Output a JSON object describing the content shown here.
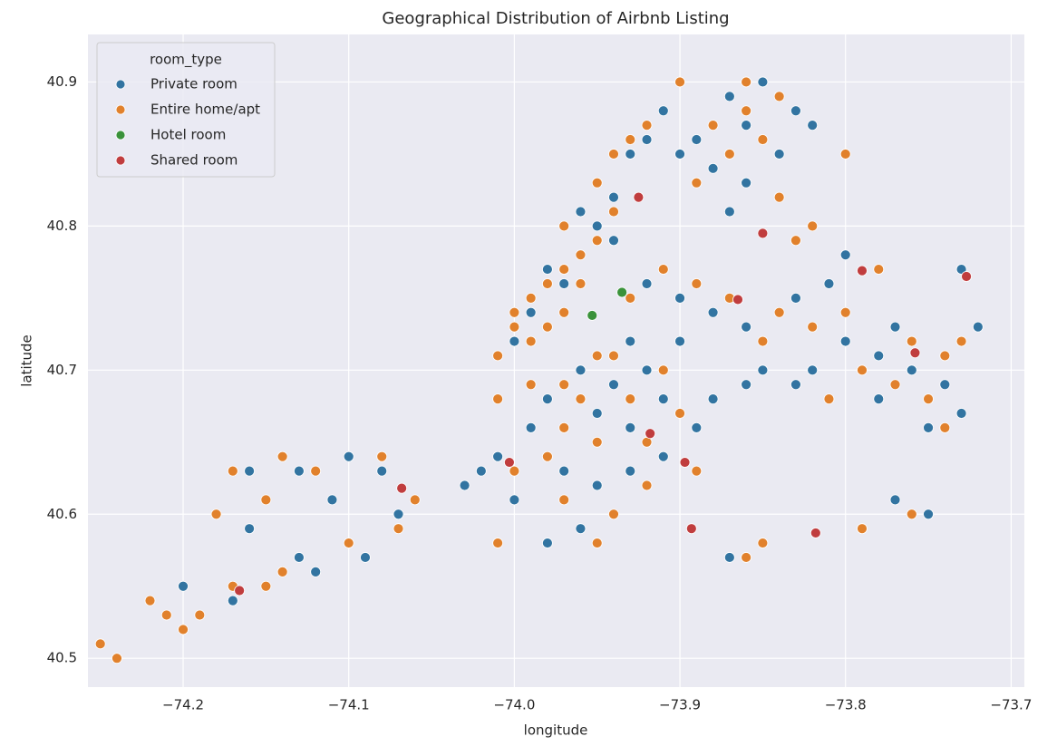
{
  "chart_data": {
    "type": "scatter",
    "title": "Geographical Distribution of Airbnb Listing",
    "x_label": "longitude",
    "y_label": "latitude",
    "legend_title": "room_type",
    "legend": "upper left",
    "grid": true,
    "xlim": [
      -74.2575,
      -73.692
    ],
    "ylim": [
      40.48,
      40.933
    ],
    "xticks": [
      {
        "value": -74.2,
        "label": "−74.2"
      },
      {
        "value": -74.1,
        "label": "−74.1"
      },
      {
        "value": -74.0,
        "label": "−74.0"
      },
      {
        "value": -73.9,
        "label": "−73.9"
      },
      {
        "value": -73.8,
        "label": "−73.8"
      },
      {
        "value": -73.7,
        "label": "−73.7"
      }
    ],
    "yticks": [
      40.5,
      40.6,
      40.7,
      40.8,
      40.9
    ],
    "series": [
      {
        "name": "Private room",
        "color": "#3274a1",
        "x": [
          -73.91,
          -73.89,
          -73.87,
          -73.85,
          -73.86,
          -73.84,
          -73.88,
          -73.9,
          -73.86,
          -73.83,
          -73.82,
          -73.87,
          -73.94,
          -73.95,
          -73.96,
          -73.93,
          -73.92,
          -73.97,
          -73.99,
          -74.0,
          -73.98,
          -73.94,
          -73.92,
          -73.9,
          -73.88,
          -73.86,
          -73.83,
          -73.81,
          -73.8,
          -73.78,
          -73.76,
          -73.74,
          -73.73,
          -73.75,
          -73.78,
          -73.82,
          -73.85,
          -73.8,
          -73.77,
          -73.73,
          -73.72,
          -73.79,
          -73.77,
          -73.75,
          -73.87,
          -73.83,
          -73.86,
          -73.96,
          -73.94,
          -73.92,
          -73.95,
          -73.93,
          -73.91,
          -73.98,
          -73.99,
          -74.01,
          -74.02,
          -73.97,
          -73.95,
          -73.93,
          -73.91,
          -73.89,
          -73.88,
          -73.96,
          -73.98,
          -74.03,
          -74.0,
          -73.9,
          -73.93,
          -74.16,
          -74.13,
          -74.1,
          -74.08,
          -74.07,
          -74.11,
          -74.13,
          -74.16,
          -74.17,
          -74.2,
          -74.09,
          -74.12
        ],
        "y": [
          40.88,
          40.86,
          40.89,
          40.9,
          40.87,
          40.85,
          40.84,
          40.85,
          40.83,
          40.88,
          40.87,
          40.81,
          40.82,
          40.8,
          40.81,
          40.85,
          40.86,
          40.76,
          40.74,
          40.72,
          40.77,
          40.79,
          40.76,
          40.75,
          40.74,
          40.73,
          40.75,
          40.76,
          40.72,
          40.71,
          40.7,
          40.69,
          40.67,
          40.66,
          40.68,
          40.7,
          40.7,
          40.78,
          40.73,
          40.77,
          40.73,
          40.59,
          40.61,
          40.6,
          40.57,
          40.69,
          40.69,
          40.7,
          40.69,
          40.7,
          40.67,
          40.66,
          40.68,
          40.68,
          40.66,
          40.64,
          40.63,
          40.63,
          40.62,
          40.63,
          40.64,
          40.66,
          40.68,
          40.59,
          40.58,
          40.62,
          40.61,
          40.72,
          40.72,
          40.63,
          40.63,
          40.64,
          40.63,
          40.6,
          40.61,
          40.57,
          40.59,
          40.54,
          40.55,
          40.57,
          40.56
        ]
      },
      {
        "name": "Entire home/apt",
        "color": "#e1812c",
        "x": [
          -74.01,
          -74.0,
          -73.99,
          -73.98,
          -73.97,
          -73.96,
          -73.95,
          -73.98,
          -73.99,
          -74.0,
          -73.96,
          -73.97,
          -73.94,
          -73.95,
          -73.94,
          -73.93,
          -73.92,
          -73.97,
          -73.9,
          -73.88,
          -73.86,
          -73.85,
          -73.84,
          -73.87,
          -73.89,
          -73.84,
          -73.8,
          -73.82,
          -73.86,
          -73.97,
          -73.95,
          -73.94,
          -73.96,
          -73.97,
          -73.98,
          -73.95,
          -73.93,
          -73.92,
          -73.9,
          -73.99,
          -74.01,
          -74.0,
          -73.97,
          -73.94,
          -73.92,
          -74.01,
          -73.95,
          -73.89,
          -73.91,
          -73.93,
          -73.91,
          -73.89,
          -73.87,
          -73.84,
          -73.82,
          -73.79,
          -73.77,
          -73.75,
          -73.74,
          -73.76,
          -73.8,
          -73.85,
          -73.81,
          -73.74,
          -73.73,
          -73.78,
          -73.83,
          -73.79,
          -73.76,
          -73.85,
          -73.86,
          -74.25,
          -74.24,
          -74.22,
          -74.2,
          -74.21,
          -74.19,
          -74.17,
          -74.15,
          -74.14,
          -74.15,
          -74.14,
          -74.12,
          -74.1,
          -74.08,
          -74.07,
          -74.06,
          -74.18,
          -74.17
        ],
        "y": [
          40.71,
          40.73,
          40.75,
          40.76,
          40.77,
          40.78,
          40.79,
          40.73,
          40.72,
          40.74,
          40.76,
          40.74,
          40.81,
          40.83,
          40.85,
          40.86,
          40.87,
          40.8,
          40.9,
          40.87,
          40.88,
          40.86,
          40.89,
          40.85,
          40.83,
          40.82,
          40.85,
          40.8,
          40.9,
          40.69,
          40.71,
          40.71,
          40.68,
          40.66,
          40.64,
          40.65,
          40.68,
          40.65,
          40.67,
          40.69,
          40.68,
          40.63,
          40.61,
          40.6,
          40.62,
          40.58,
          40.58,
          40.63,
          40.7,
          40.75,
          40.77,
          40.76,
          40.75,
          40.74,
          40.73,
          40.7,
          40.69,
          40.68,
          40.71,
          40.72,
          40.74,
          40.72,
          40.68,
          40.66,
          40.72,
          40.77,
          40.79,
          40.59,
          40.6,
          40.58,
          40.57,
          40.51,
          40.5,
          40.54,
          40.52,
          40.53,
          40.53,
          40.55,
          40.55,
          40.56,
          40.61,
          40.64,
          40.63,
          40.58,
          40.64,
          40.59,
          40.61,
          40.6,
          40.63
        ]
      },
      {
        "name": "Hotel room",
        "color": "#3a923a",
        "x": [
          -73.935,
          -73.953
        ],
        "y": [
          40.754,
          40.738
        ]
      },
      {
        "name": "Shared room",
        "color": "#c03d3e",
        "x": [
          -73.925,
          -73.865,
          -73.85,
          -73.79,
          -73.727,
          -73.758,
          -73.897,
          -73.918,
          -74.003,
          -74.068,
          -74.166,
          -73.818,
          -73.893
        ],
        "y": [
          40.82,
          40.749,
          40.795,
          40.769,
          40.765,
          40.712,
          40.636,
          40.656,
          40.636,
          40.618,
          40.547,
          40.587,
          40.59
        ]
      }
    ]
  }
}
